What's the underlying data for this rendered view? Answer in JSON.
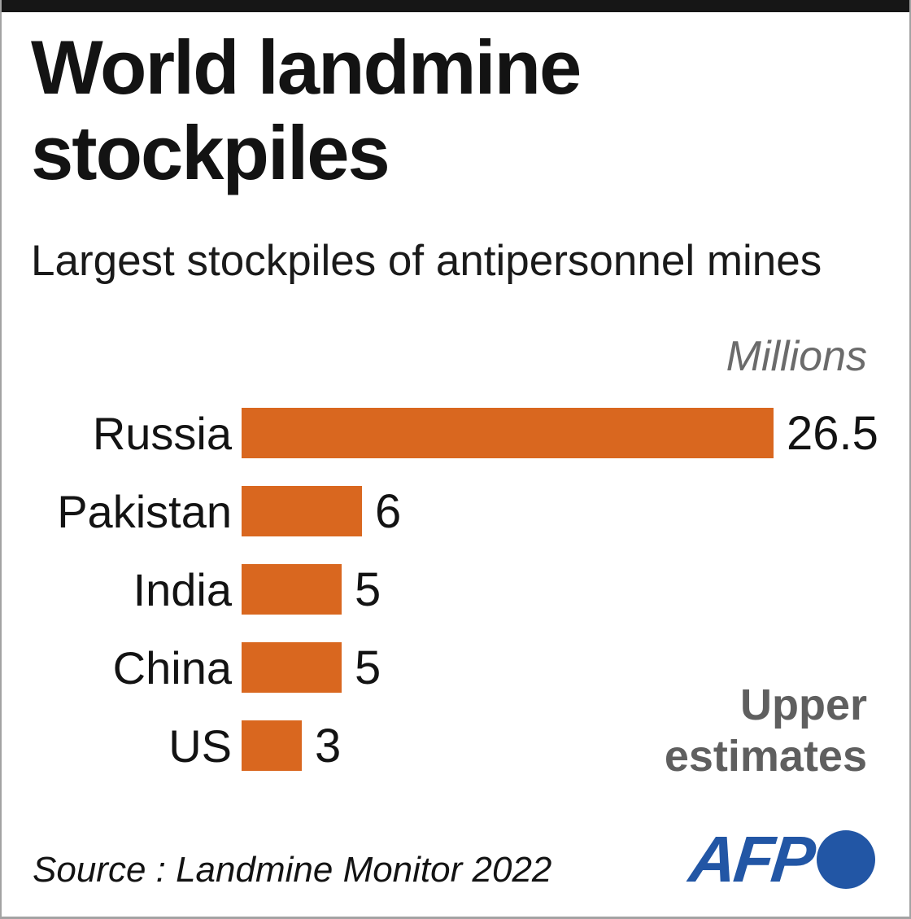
{
  "frame": {
    "top_bar_color": "#161616",
    "background": "#ffffff",
    "border_color": "#a3a3a3"
  },
  "header": {
    "title": "World landmine stockpiles",
    "subtitle": "Largest stockpiles of antipersonnel mines"
  },
  "chart_data": {
    "type": "bar",
    "orientation": "horizontal",
    "title": "World landmine stockpiles",
    "subtitle": "Largest stockpiles of antipersonnel mines",
    "unit_label": "Millions",
    "annotation": "Upper estimates",
    "categories": [
      "Russia",
      "Pakistan",
      "India",
      "China",
      "US"
    ],
    "values": [
      26.5,
      6,
      5,
      5,
      3
    ],
    "value_labels": [
      "26.5",
      "6",
      "5",
      "5",
      "3"
    ],
    "xlim": [
      0,
      26.5
    ],
    "bar_color": "#d9671f",
    "grid": false,
    "legend": "none"
  },
  "footer": {
    "source": "Source : Landmine Monitor 2022",
    "logo_text": "AFP"
  },
  "colors": {
    "bar_orange": "#d9671f",
    "afp_blue": "#2256a5",
    "note_gray": "#5f5f5f",
    "unit_gray": "#6b6b6b",
    "text_black": "#131313"
  }
}
